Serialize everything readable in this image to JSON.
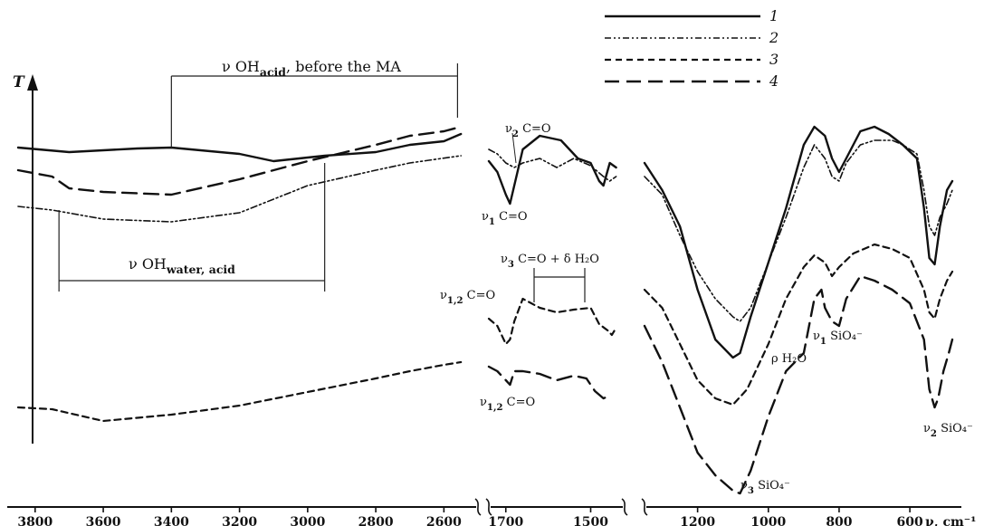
{
  "chart_data": {
    "type": "line",
    "title": "",
    "ylabel": "T",
    "xlabel": "ν, cm⁻¹",
    "grid": false,
    "legend_position": "top-right",
    "x_segments": [
      {
        "xlim": [
          3850,
          2500
        ],
        "ticks": [
          3800,
          3600,
          3400,
          3200,
          3000,
          2800,
          2600
        ]
      },
      {
        "xlim": [
          1740,
          1420
        ],
        "ticks": [
          1700,
          1500
        ]
      },
      {
        "xlim": [
          1350,
          480
        ],
        "ticks": [
          1200,
          1000,
          800,
          600
        ]
      }
    ],
    "tick_labels": [
      "3800",
      "3600",
      "3400",
      "3200",
      "3000",
      "2800",
      "2600",
      "1700",
      "1500",
      "1200",
      "1000",
      "800",
      "600"
    ],
    "axis_unit_label": "ν, cm⁻¹",
    "series": [
      {
        "name": "1",
        "style": "solid",
        "segments": [
          [
            [
              3850,
              163
            ],
            [
              3700,
              168
            ],
            [
              3500,
              164
            ],
            [
              3400,
              163
            ],
            [
              3200,
              170
            ],
            [
              3100,
              178
            ],
            [
              2950,
              172
            ],
            [
              2800,
              168
            ],
            [
              2700,
              160
            ],
            [
              2600,
              156
            ],
            [
              2550,
              148
            ]
          ],
          [
            [
              1740,
              178
            ],
            [
              1720,
              190
            ],
            [
              1700,
              215
            ],
            [
              1690,
              225
            ],
            [
              1680,
              205
            ],
            [
              1660,
              165
            ],
            [
              1620,
              150
            ],
            [
              1570,
              155
            ],
            [
              1530,
              175
            ],
            [
              1500,
              180
            ],
            [
              1480,
              200
            ],
            [
              1470,
              205
            ],
            [
              1455,
              180
            ],
            [
              1440,
              185
            ]
          ],
          [
            [
              1350,
              180
            ],
            [
              1300,
              210
            ],
            [
              1250,
              250
            ],
            [
              1200,
              320
            ],
            [
              1150,
              375
            ],
            [
              1100,
              395
            ],
            [
              1080,
              390
            ],
            [
              1050,
              350
            ],
            [
              1000,
              290
            ],
            [
              950,
              230
            ],
            [
              900,
              160
            ],
            [
              870,
              140
            ],
            [
              840,
              150
            ],
            [
              820,
              175
            ],
            [
              800,
              190
            ],
            [
              780,
              175
            ],
            [
              740,
              145
            ],
            [
              700,
              140
            ],
            [
              660,
              148
            ],
            [
              620,
              160
            ],
            [
              580,
              175
            ],
            [
              560,
              230
            ],
            [
              545,
              285
            ],
            [
              530,
              292
            ],
            [
              515,
              250
            ],
            [
              495,
              210
            ],
            [
              480,
              200
            ]
          ]
        ]
      },
      {
        "name": "2",
        "style": "dash-dot-dot",
        "segments": [
          [
            [
              3850,
              228
            ],
            [
              3750,
              232
            ],
            [
              3600,
              242
            ],
            [
              3400,
              245
            ],
            [
              3200,
              235
            ],
            [
              3000,
              205
            ],
            [
              2800,
              188
            ],
            [
              2700,
              180
            ],
            [
              2550,
              172
            ]
          ],
          [
            [
              1740,
              165
            ],
            [
              1720,
              170
            ],
            [
              1700,
              180
            ],
            [
              1680,
              185
            ],
            [
              1660,
              180
            ],
            [
              1620,
              175
            ],
            [
              1580,
              185
            ],
            [
              1540,
              175
            ],
            [
              1500,
              183
            ],
            [
              1470,
              195
            ],
            [
              1455,
              200
            ],
            [
              1440,
              195
            ]
          ],
          [
            [
              1350,
              195
            ],
            [
              1300,
              215
            ],
            [
              1250,
              260
            ],
            [
              1200,
              300
            ],
            [
              1150,
              330
            ],
            [
              1100,
              350
            ],
            [
              1080,
              355
            ],
            [
              1050,
              340
            ],
            [
              1000,
              290
            ],
            [
              950,
              240
            ],
            [
              900,
              185
            ],
            [
              870,
              160
            ],
            [
              840,
              175
            ],
            [
              820,
              195
            ],
            [
              800,
              200
            ],
            [
              780,
              180
            ],
            [
              740,
              160
            ],
            [
              700,
              155
            ],
            [
              650,
              155
            ],
            [
              620,
              160
            ],
            [
              580,
              170
            ],
            [
              560,
              210
            ],
            [
              545,
              250
            ],
            [
              530,
              260
            ],
            [
              515,
              240
            ],
            [
              495,
              225
            ],
            [
              480,
              210
            ]
          ]
        ]
      },
      {
        "name": "3",
        "style": "dashed",
        "segments": [
          [
            [
              3850,
              450
            ],
            [
              3750,
              452
            ],
            [
              3600,
              465
            ],
            [
              3400,
              458
            ],
            [
              3200,
              448
            ],
            [
              3000,
              433
            ],
            [
              2800,
              418
            ],
            [
              2700,
              410
            ],
            [
              2600,
              403
            ],
            [
              2550,
              400
            ]
          ],
          [
            [
              1740,
              352
            ],
            [
              1720,
              360
            ],
            [
              1700,
              380
            ],
            [
              1690,
              375
            ],
            [
              1680,
              355
            ],
            [
              1660,
              330
            ],
            [
              1620,
              340
            ],
            [
              1580,
              345
            ],
            [
              1540,
              342
            ],
            [
              1500,
              340
            ],
            [
              1480,
              358
            ],
            [
              1460,
              365
            ],
            [
              1450,
              370
            ],
            [
              1440,
              362
            ]
          ],
          [
            [
              1350,
              320
            ],
            [
              1300,
              340
            ],
            [
              1250,
              380
            ],
            [
              1200,
              420
            ],
            [
              1150,
              440
            ],
            [
              1100,
              447
            ],
            [
              1060,
              430
            ],
            [
              1000,
              380
            ],
            [
              950,
              330
            ],
            [
              900,
              295
            ],
            [
              870,
              282
            ],
            [
              840,
              290
            ],
            [
              820,
              305
            ],
            [
              800,
              295
            ],
            [
              760,
              280
            ],
            [
              700,
              270
            ],
            [
              650,
              275
            ],
            [
              600,
              285
            ],
            [
              560,
              320
            ],
            [
              545,
              345
            ],
            [
              530,
              352
            ],
            [
              515,
              330
            ],
            [
              495,
              310
            ],
            [
              480,
              300
            ]
          ]
        ]
      },
      {
        "name": "4",
        "style": "long-dash",
        "segments": [
          [
            [
              3850,
              188
            ],
            [
              3750,
              195
            ],
            [
              3700,
              208
            ],
            [
              3600,
              212
            ],
            [
              3400,
              215
            ],
            [
              3200,
              198
            ],
            [
              3000,
              178
            ],
            [
              2800,
              160
            ],
            [
              2700,
              150
            ],
            [
              2600,
              145
            ],
            [
              2550,
              140
            ]
          ],
          [
            [
              1740,
              405
            ],
            [
              1720,
              410
            ],
            [
              1700,
              420
            ],
            [
              1690,
              425
            ],
            [
              1680,
              410
            ],
            [
              1660,
              410
            ],
            [
              1620,
              413
            ],
            [
              1580,
              420
            ],
            [
              1540,
              415
            ],
            [
              1510,
              418
            ],
            [
              1490,
              432
            ],
            [
              1470,
              440
            ],
            [
              1460,
              438
            ]
          ],
          [
            [
              1350,
              360
            ],
            [
              1300,
              400
            ],
            [
              1250,
              450
            ],
            [
              1200,
              500
            ],
            [
              1150,
              525
            ],
            [
              1100,
              542
            ],
            [
              1080,
              545
            ],
            [
              1050,
              520
            ],
            [
              1000,
              460
            ],
            [
              950,
              410
            ],
            [
              900,
              390
            ],
            [
              870,
              330
            ],
            [
              850,
              320
            ],
            [
              840,
              340
            ],
            [
              820,
              355
            ],
            [
              800,
              360
            ],
            [
              780,
              330
            ],
            [
              740,
              305
            ],
            [
              700,
              310
            ],
            [
              650,
              320
            ],
            [
              600,
              335
            ],
            [
              560,
              375
            ],
            [
              545,
              430
            ],
            [
              530,
              450
            ],
            [
              520,
              440
            ],
            [
              505,
              410
            ],
            [
              490,
              390
            ],
            [
              480,
              375
            ]
          ]
        ]
      }
    ],
    "annotations": [
      {
        "text": "ν OH",
        "sub": "acid",
        "rest": ", before the MA",
        "range_x": [
          3400,
          2560
        ]
      },
      {
        "text": "ν OH",
        "sub": "water, acid",
        "rest": "",
        "range_x": [
          3730,
          2950
        ]
      },
      {
        "text": "ν",
        "sub": "1",
        "rest": " C=O"
      },
      {
        "text": "ν",
        "sub": "2",
        "rest": " C=O"
      },
      {
        "text": "ν",
        "sub": "3",
        "rest": " C=O + δ H₂O"
      },
      {
        "text": "ν",
        "sub": "1,2",
        "rest": " C=O"
      },
      {
        "text": "ν",
        "sub": "1,2",
        "rest": " C=O"
      },
      {
        "text": "ρ H₂O",
        "sub": "",
        "rest": ""
      },
      {
        "text": "ν",
        "sub": "1",
        "rest": " SiO₄⁻"
      },
      {
        "text": "ν",
        "sub": "2",
        "rest": " SiO₄⁻"
      },
      {
        "text": "ν",
        "sub": "3",
        "rest": " SiO₄⁻"
      }
    ]
  }
}
